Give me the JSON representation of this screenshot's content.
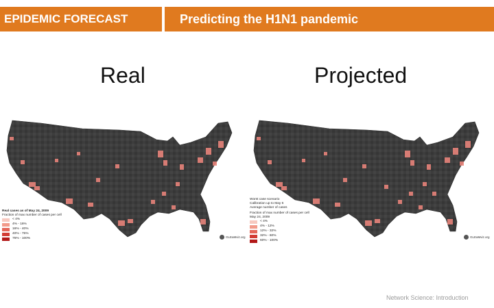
{
  "header": {
    "left_title": "EPIDEMIC FORECAST",
    "right_title": "Predicting the H1N1 pandemic",
    "accent_color": "#e07a1f"
  },
  "panels": [
    {
      "title": "Real",
      "legend": {
        "heading": "Real cases as of May 24, 2009",
        "subheading": "Fraction of max number of cases per cell",
        "rows": [
          "< 4%",
          "4% - 16%",
          "16% - 40%",
          "40% - 75%",
          "75% - 100%"
        ]
      },
      "credit": "GLEaMviz.org"
    },
    {
      "title": "Projected",
      "legend": {
        "heading_lines": [
          "Worst case scenario",
          "Calibration up to May 6",
          "Average number of cases"
        ],
        "subheading": "Fraction of max number of cases per cell",
        "date": "May 24, 2009",
        "rows": [
          "< 4%",
          "4% - 12%",
          "12% - 32%",
          "32% - 60%",
          "60% - 100%"
        ]
      },
      "credit": "GLEaMviz.org"
    }
  ],
  "legend_colors": [
    "#f7c9c0",
    "#f29a8a",
    "#e5675a",
    "#d23b33",
    "#b21818"
  ],
  "footer": "Network Science: Introduction"
}
